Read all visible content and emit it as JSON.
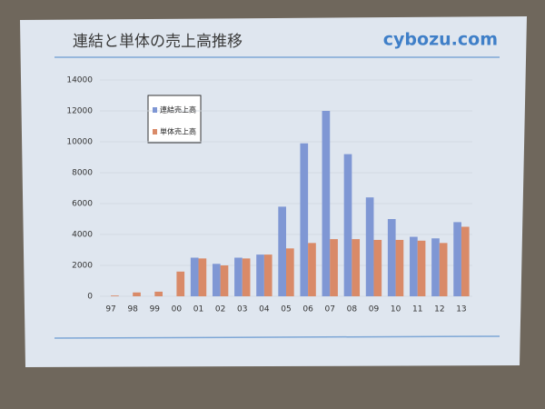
{
  "chart_data": {
    "type": "bar",
    "title": "連結と単体の売上高推移",
    "logo": "cybozu.com",
    "categories": [
      "97",
      "98",
      "99",
      "00",
      "01",
      "02",
      "03",
      "04",
      "05",
      "06",
      "07",
      "08",
      "09",
      "10",
      "11",
      "12",
      "13"
    ],
    "series": [
      {
        "name": "連結売上高",
        "color": "#7f97d4",
        "values": [
          null,
          null,
          null,
          null,
          2500,
          2100,
          2500,
          2700,
          5800,
          9900,
          12000,
          9200,
          6400,
          5000,
          3850,
          3750,
          4800
        ]
      },
      {
        "name": "単体売上高",
        "color": "#d98a68",
        "values": [
          50,
          250,
          300,
          1600,
          2450,
          2000,
          2450,
          2700,
          3100,
          3450,
          3700,
          3700,
          3650,
          3650,
          3600,
          3450,
          4500
        ]
      }
    ],
    "ylim": [
      0,
      14000
    ],
    "yticks": [
      0,
      2000,
      4000,
      6000,
      8000,
      10000,
      12000,
      14000
    ],
    "grid": true
  }
}
